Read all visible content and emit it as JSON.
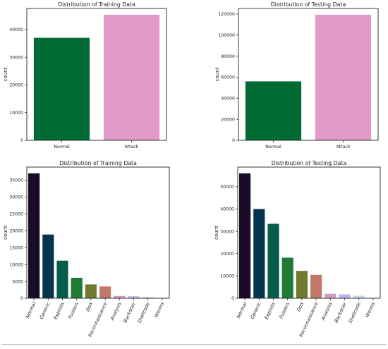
{
  "chart_data": [
    {
      "type": "bar",
      "title": "Distribution of Training Data",
      "xlabel": "",
      "ylabel": "count",
      "categories": [
        "Normal",
        "Attack"
      ],
      "values": [
        37000,
        45332
      ],
      "colors": [
        "#006b32",
        "#e29ac8"
      ],
      "ylim": [
        0,
        47600
      ],
      "yticks": [
        0,
        10000,
        20000,
        30000,
        40000
      ],
      "ytick_labels": [
        "0",
        "10000",
        "20000",
        "30000",
        "40000"
      ],
      "rotate_xticks": false,
      "grid": false,
      "legend": "none"
    },
    {
      "type": "bar",
      "title": "Distribution of Testing Data",
      "xlabel": "",
      "ylabel": "count",
      "categories": [
        "Normal",
        "Attack"
      ],
      "values": [
        56000,
        119341
      ],
      "colors": [
        "#006b32",
        "#e29ac8"
      ],
      "ylim": [
        0,
        125300
      ],
      "yticks": [
        0,
        20000,
        40000,
        60000,
        80000,
        100000,
        120000
      ],
      "ytick_labels": [
        "0",
        "20000",
        "40000",
        "60000",
        "80000",
        "100000",
        "120000"
      ],
      "rotate_xticks": false,
      "grid": false,
      "legend": "none"
    },
    {
      "type": "bar",
      "title": "Distribution of Training Data",
      "xlabel": "",
      "ylabel": "count",
      "categories": [
        "Normal",
        "Generic",
        "Exploits",
        "Fuzzers",
        "DoS",
        "Reconnaissance",
        "Analysis",
        "Backdoor",
        "Shellcode",
        "Worms"
      ],
      "values": [
        37000,
        18871,
        11132,
        6062,
        4089,
        3496,
        677,
        583,
        378,
        44
      ],
      "colors": [
        "#1a0b2a",
        "#04344f",
        "#055c4a",
        "#1f7a36",
        "#6f7a2e",
        "#c17869",
        "#d29bc2",
        "#c3b0ea",
        "#c3dce8",
        "#eef3f6"
      ],
      "ylim": [
        0,
        38850
      ],
      "yticks": [
        0,
        5000,
        10000,
        15000,
        20000,
        25000,
        30000,
        35000
      ],
      "ytick_labels": [
        "0",
        "5000",
        "10000",
        "15000",
        "20000",
        "25000",
        "30000",
        "35000"
      ],
      "rotate_xticks": true,
      "grid": false,
      "legend": "none"
    },
    {
      "type": "bar",
      "title": "Distribution of Testing Data",
      "xlabel": "",
      "ylabel": "count",
      "categories": [
        "Normal",
        "Generic",
        "Exploits",
        "Fuzzers",
        "DoS",
        "Reconnaissance",
        "Analysis",
        "Backdoor",
        "Shellcode",
        "Worms"
      ],
      "values": [
        56000,
        40000,
        33393,
        18184,
        12264,
        10491,
        2000,
        1746,
        1133,
        130
      ],
      "colors": [
        "#1a0b2a",
        "#04344f",
        "#055c4a",
        "#1f7a36",
        "#6f7a2e",
        "#c17869",
        "#d29bc2",
        "#c3b0ea",
        "#c3dce8",
        "#eef3f6"
      ],
      "ylim": [
        0,
        58800
      ],
      "yticks": [
        0,
        10000,
        20000,
        30000,
        40000,
        50000
      ],
      "ytick_labels": [
        "0",
        "10000",
        "20000",
        "30000",
        "40000",
        "50000"
      ],
      "rotate_xticks": true,
      "grid": false,
      "legend": "none"
    }
  ]
}
